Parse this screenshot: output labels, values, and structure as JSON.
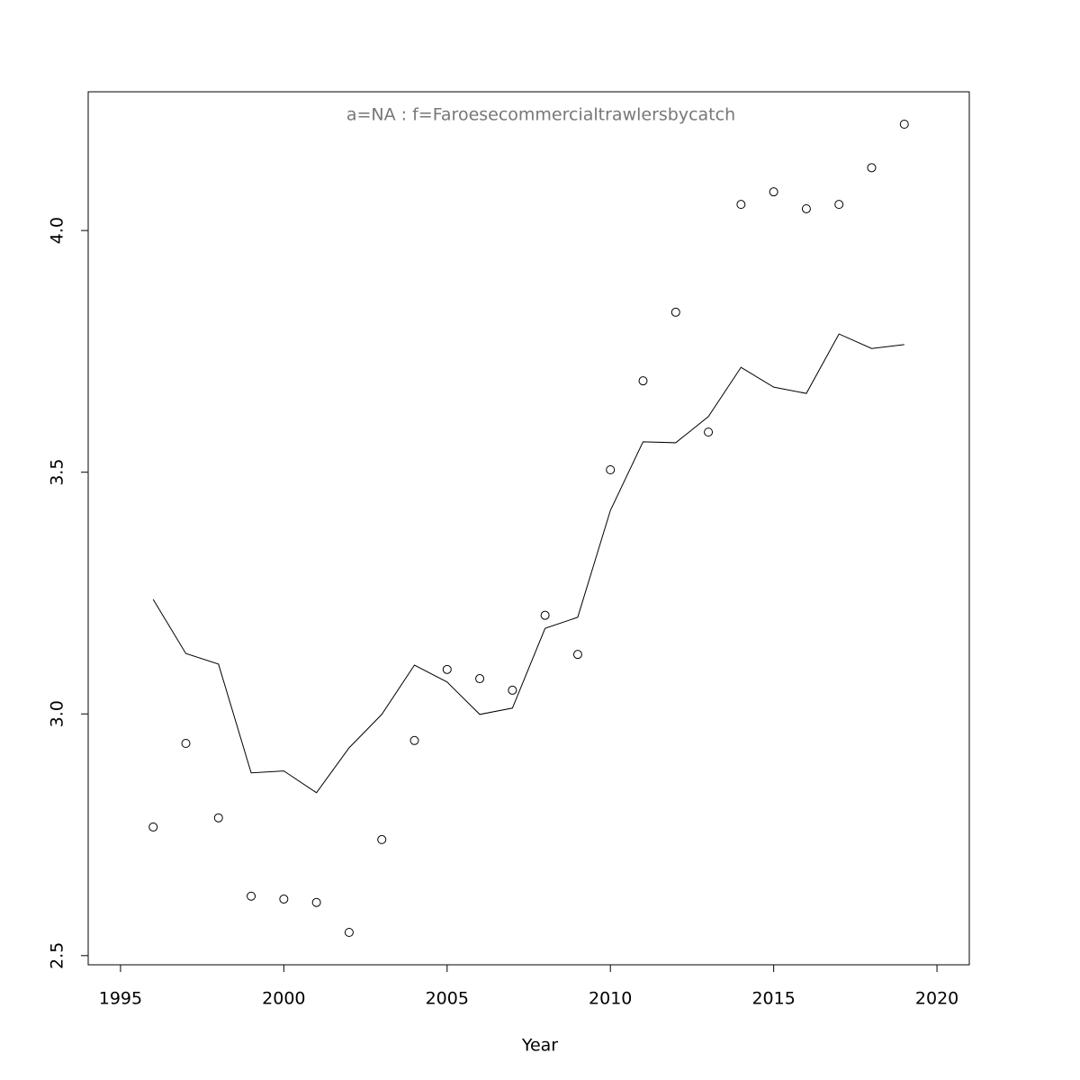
{
  "chart_data": {
    "type": "scatter",
    "title": "a=NA  :  f=Faroesecommercialtrawlersbycatch",
    "x_label": "Year",
    "x": [
      1996,
      1997,
      1998,
      1999,
      2000,
      2001,
      2002,
      2003,
      2004,
      2005,
      2006,
      2007,
      2008,
      2009,
      2010,
      2011,
      2012,
      2013,
      2014,
      2015,
      2016,
      2017,
      2018,
      2019
    ],
    "series": [
      {
        "mode": "points",
        "color": "#000000",
        "values": [
          2.766,
          2.939,
          2.785,
          2.623,
          2.617,
          2.61,
          2.548,
          2.74,
          2.945,
          3.092,
          3.073,
          3.049,
          3.204,
          3.123,
          3.505,
          3.689,
          3.831,
          3.583,
          4.054,
          4.08,
          4.045,
          4.054,
          4.13,
          4.22
        ]
      },
      {
        "mode": "line",
        "color": "#000000",
        "values": [
          3.237,
          3.125,
          3.103,
          2.878,
          2.882,
          2.837,
          2.93,
          2.999,
          3.101,
          3.066,
          2.999,
          3.012,
          3.177,
          3.2,
          3.421,
          3.563,
          3.561,
          3.615,
          3.717,
          3.676,
          3.663,
          3.786,
          3.756,
          3.764
        ]
      }
    ],
    "xlim": [
      1994.01,
      2020.99
    ],
    "xticks": [
      1995,
      2000,
      2005,
      2010,
      2015,
      2020
    ],
    "ylim": [
      2.481,
      4.287
    ],
    "yticks": [
      2.5,
      {
        "value": 3,
        "label": "3.0"
      },
      3.5,
      {
        "value": 4,
        "label": "4.0"
      }
    ],
    "grid": false
  }
}
